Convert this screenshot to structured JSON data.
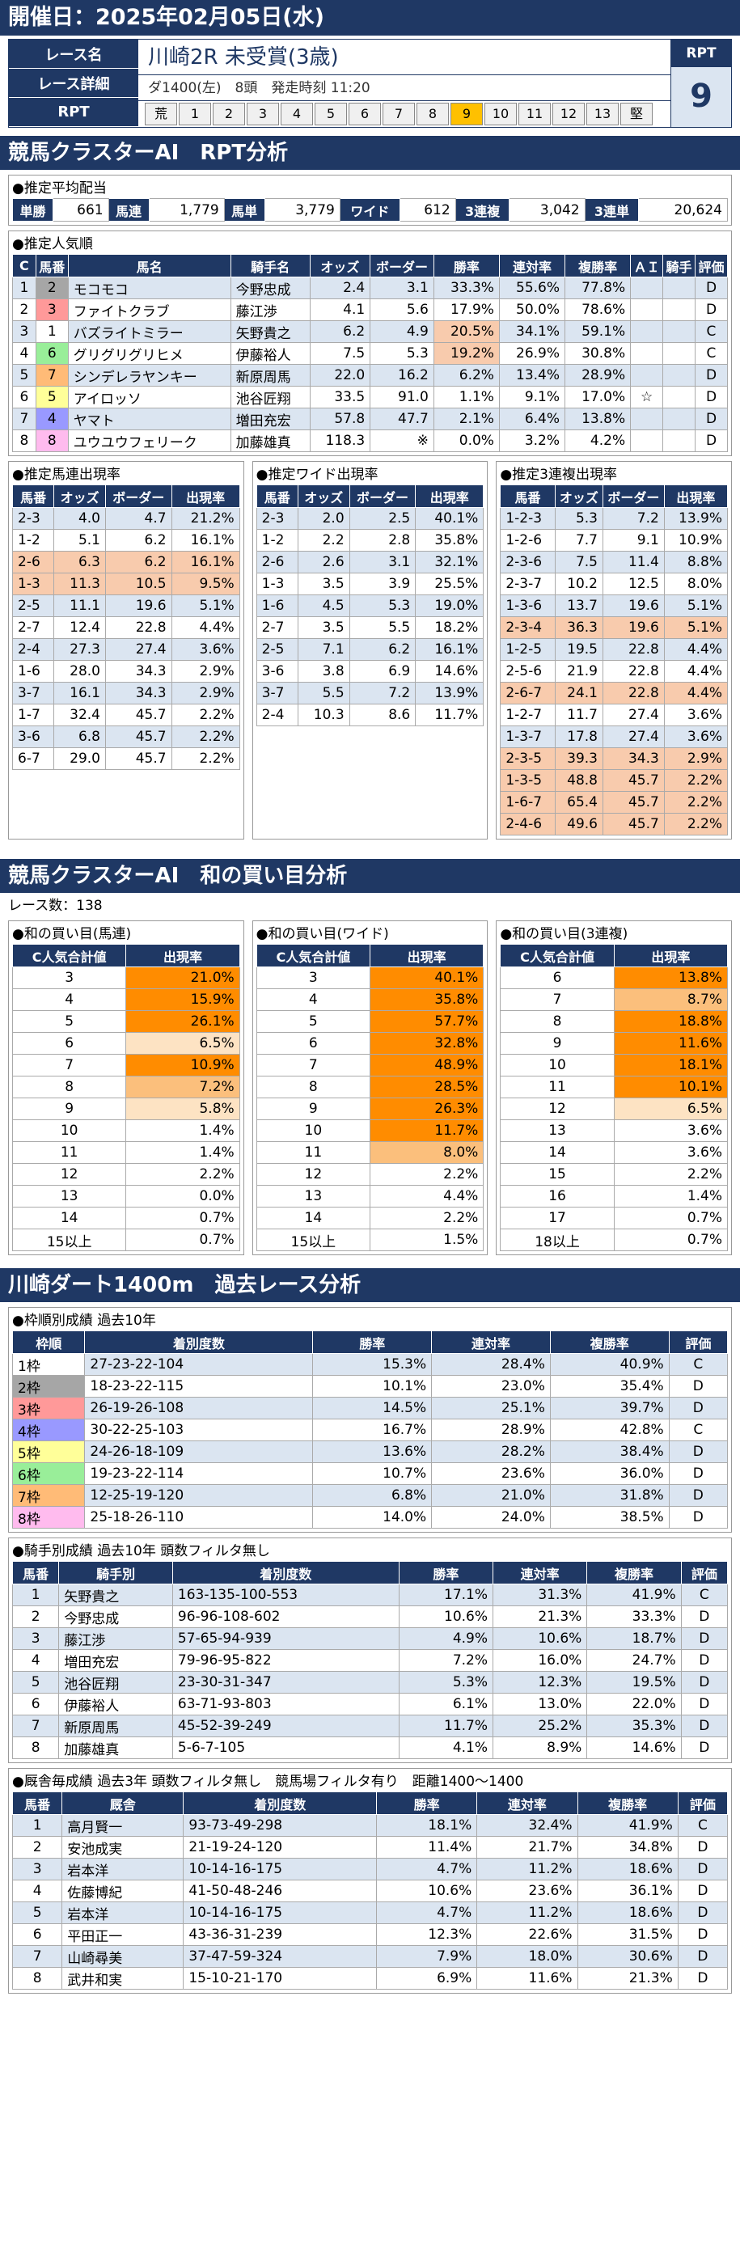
{
  "date_title": "開催日：2025年02月05日(水)",
  "race": {
    "name_label": "レース名",
    "name": "川崎2R 未受賞(3歳)",
    "detail_label": "レース詳細",
    "detail": "ダ1400(左)　8頭　発走時刻 11:20",
    "rpt_label": "RPT",
    "rpt_cells": [
      "荒",
      "1",
      "2",
      "3",
      "4",
      "5",
      "6",
      "7",
      "8",
      "9",
      "10",
      "11",
      "12",
      "13",
      "堅"
    ],
    "rpt_highlight": "9",
    "rpt_title": "RPT",
    "rpt_value": "9"
  },
  "s1_title": "競馬クラスターAI　RPT分析",
  "payout": {
    "caption": "●推定平均配当",
    "items": [
      [
        "単勝",
        "661"
      ],
      [
        "馬連",
        "1,779"
      ],
      [
        "馬単",
        "3,779"
      ],
      [
        "ワイド",
        "612"
      ],
      [
        "3連複",
        "3,042"
      ],
      [
        "3連単",
        "20,624"
      ]
    ]
  },
  "popular": {
    "caption": "●推定人気順",
    "headers": [
      "C",
      "馬番",
      "馬名",
      "騎手名",
      "オッズ",
      "ボーダー",
      "勝率",
      "連対率",
      "複勝率",
      "ＡＩ",
      "騎手",
      "評価"
    ],
    "rows": [
      [
        "1",
        "2",
        "モコモコ",
        "今野忠成",
        "2.4",
        "3.1",
        "33.3%",
        "55.6%",
        "77.8%",
        "",
        "",
        "D"
      ],
      [
        "2",
        "3",
        "ファイトクラブ",
        "藤江渉",
        "4.1",
        "5.6",
        "17.9%",
        "50.0%",
        "78.6%",
        "",
        "",
        "D"
      ],
      [
        "3",
        "1",
        "バズライトミラー",
        "矢野貴之",
        "6.2",
        "4.9",
        "20.5%",
        "34.1%",
        "59.1%",
        "",
        "",
        "C"
      ],
      [
        "4",
        "6",
        "グリグリグリヒメ",
        "伊藤裕人",
        "7.5",
        "5.3",
        "19.2%",
        "26.9%",
        "30.8%",
        "",
        "",
        "C"
      ],
      [
        "5",
        "7",
        "シンデレラヤンキー",
        "新原周馬",
        "22.0",
        "16.2",
        "6.2%",
        "13.4%",
        "28.9%",
        "",
        "",
        "D"
      ],
      [
        "6",
        "5",
        "アイロッソ",
        "池谷匠翔",
        "33.5",
        "91.0",
        "1.1%",
        "9.1%",
        "17.0%",
        "☆",
        "",
        "D"
      ],
      [
        "7",
        "4",
        "ヤマト",
        "増田充宏",
        "57.8",
        "47.7",
        "2.1%",
        "6.4%",
        "13.8%",
        "",
        "",
        "D"
      ],
      [
        "8",
        "8",
        "ユウユウフェリーク",
        "加藤雄真",
        "118.3",
        "※",
        "0.0%",
        "3.2%",
        "4.2%",
        "",
        "",
        "D"
      ]
    ]
  },
  "umaren": {
    "caption": "●推定馬連出現率",
    "headers": [
      "馬番",
      "オッズ",
      "ボーダー",
      "出現率"
    ],
    "rows": [
      [
        "2-3",
        "4.0",
        "4.7",
        "21.2%"
      ],
      [
        "1-2",
        "5.1",
        "6.2",
        "16.1%"
      ],
      [
        "2-6",
        "6.3",
        "6.2",
        "16.1%"
      ],
      [
        "1-3",
        "11.3",
        "10.5",
        "9.5%"
      ],
      [
        "2-5",
        "11.1",
        "19.6",
        "5.1%"
      ],
      [
        "2-7",
        "12.4",
        "22.8",
        "4.4%"
      ],
      [
        "2-4",
        "27.3",
        "27.4",
        "3.6%"
      ],
      [
        "1-6",
        "28.0",
        "34.3",
        "2.9%"
      ],
      [
        "3-7",
        "16.1",
        "34.3",
        "2.9%"
      ],
      [
        "1-7",
        "32.4",
        "45.7",
        "2.2%"
      ],
      [
        "3-6",
        "6.8",
        "45.7",
        "2.2%"
      ],
      [
        "6-7",
        "29.0",
        "45.7",
        "2.2%"
      ]
    ]
  },
  "wide": {
    "caption": "●推定ワイド出現率",
    "headers": [
      "馬番",
      "オッズ",
      "ボーダー",
      "出現率"
    ],
    "rows": [
      [
        "2-3",
        "2.0",
        "2.5",
        "40.1%"
      ],
      [
        "1-2",
        "2.2",
        "2.8",
        "35.8%"
      ],
      [
        "2-6",
        "2.6",
        "3.1",
        "32.1%"
      ],
      [
        "1-3",
        "3.5",
        "3.9",
        "25.5%"
      ],
      [
        "1-6",
        "4.5",
        "5.3",
        "19.0%"
      ],
      [
        "2-7",
        "3.5",
        "5.5",
        "18.2%"
      ],
      [
        "2-5",
        "7.1",
        "6.2",
        "16.1%"
      ],
      [
        "3-6",
        "3.8",
        "6.9",
        "14.6%"
      ],
      [
        "3-7",
        "5.5",
        "7.2",
        "13.9%"
      ],
      [
        "2-4",
        "10.3",
        "8.6",
        "11.7%"
      ]
    ]
  },
  "sanren": {
    "caption": "●推定3連複出現率",
    "headers": [
      "馬番",
      "オッズ",
      "ボーダー",
      "出現率"
    ],
    "rows": [
      [
        "1-2-3",
        "5.3",
        "7.2",
        "13.9%"
      ],
      [
        "1-2-6",
        "7.7",
        "9.1",
        "10.9%"
      ],
      [
        "2-3-6",
        "7.5",
        "11.4",
        "8.8%"
      ],
      [
        "2-3-7",
        "10.2",
        "12.5",
        "8.0%"
      ],
      [
        "1-3-6",
        "13.7",
        "19.6",
        "5.1%"
      ],
      [
        "2-3-4",
        "36.3",
        "19.6",
        "5.1%"
      ],
      [
        "1-2-5",
        "19.5",
        "22.8",
        "4.4%"
      ],
      [
        "2-5-6",
        "21.9",
        "22.8",
        "4.4%"
      ],
      [
        "2-6-7",
        "24.1",
        "22.8",
        "4.4%"
      ],
      [
        "1-2-7",
        "11.7",
        "27.4",
        "3.6%"
      ],
      [
        "1-3-7",
        "17.8",
        "27.4",
        "3.6%"
      ],
      [
        "2-3-5",
        "39.3",
        "34.3",
        "2.9%"
      ],
      [
        "1-3-5",
        "48.8",
        "45.7",
        "2.2%"
      ],
      [
        "1-6-7",
        "65.4",
        "45.7",
        "2.2%"
      ],
      [
        "2-4-6",
        "49.6",
        "45.7",
        "2.2%"
      ]
    ]
  },
  "s2_title": "競馬クラスターAI　和の買い目分析",
  "race_count": "レース数：138",
  "sum_umaren": {
    "caption": "●和の買い目(馬連)",
    "h1": "C人気合計値",
    "h2": "出現率",
    "rows": [
      [
        "3",
        "21.0%"
      ],
      [
        "4",
        "15.9%"
      ],
      [
        "5",
        "26.1%"
      ],
      [
        "6",
        "6.5%"
      ],
      [
        "7",
        "10.9%"
      ],
      [
        "8",
        "7.2%"
      ],
      [
        "9",
        "5.8%"
      ],
      [
        "10",
        "1.4%"
      ],
      [
        "11",
        "1.4%"
      ],
      [
        "12",
        "2.2%"
      ],
      [
        "13",
        "0.0%"
      ],
      [
        "14",
        "0.7%"
      ],
      [
        "15以上",
        "0.7%"
      ]
    ]
  },
  "sum_wide": {
    "caption": "●和の買い目(ワイド)",
    "h1": "C人気合計値",
    "h2": "出現率",
    "rows": [
      [
        "3",
        "40.1%"
      ],
      [
        "4",
        "35.8%"
      ],
      [
        "5",
        "57.7%"
      ],
      [
        "6",
        "32.8%"
      ],
      [
        "7",
        "48.9%"
      ],
      [
        "8",
        "28.5%"
      ],
      [
        "9",
        "26.3%"
      ],
      [
        "10",
        "11.7%"
      ],
      [
        "11",
        "8.0%"
      ],
      [
        "12",
        "2.2%"
      ],
      [
        "13",
        "4.4%"
      ],
      [
        "14",
        "2.2%"
      ],
      [
        "15以上",
        "1.5%"
      ]
    ]
  },
  "sum_sanren": {
    "caption": "●和の買い目(3連複)",
    "h1": "C人気合計値",
    "h2": "出現率",
    "rows": [
      [
        "6",
        "13.8%"
      ],
      [
        "7",
        "8.7%"
      ],
      [
        "8",
        "18.8%"
      ],
      [
        "9",
        "11.6%"
      ],
      [
        "10",
        "18.1%"
      ],
      [
        "11",
        "10.1%"
      ],
      [
        "12",
        "6.5%"
      ],
      [
        "13",
        "3.6%"
      ],
      [
        "14",
        "3.6%"
      ],
      [
        "15",
        "2.2%"
      ],
      [
        "16",
        "1.4%"
      ],
      [
        "17",
        "0.7%"
      ],
      [
        "18以上",
        "0.7%"
      ]
    ]
  },
  "s3_title": "川崎ダート1400m　過去レース分析",
  "frame": {
    "caption": "●枠順別成績 過去10年",
    "headers": [
      "枠順",
      "着別度数",
      "勝率",
      "連対率",
      "複勝率",
      "評価"
    ],
    "rows": [
      [
        "1枠",
        "27-23-22-104",
        "15.3%",
        "28.4%",
        "40.9%",
        "C"
      ],
      [
        "2枠",
        "18-23-22-115",
        "10.1%",
        "23.0%",
        "35.4%",
        "D"
      ],
      [
        "3枠",
        "26-19-26-108",
        "14.5%",
        "25.1%",
        "39.7%",
        "D"
      ],
      [
        "4枠",
        "30-22-25-103",
        "16.7%",
        "28.9%",
        "42.8%",
        "C"
      ],
      [
        "5枠",
        "24-26-18-109",
        "13.6%",
        "28.2%",
        "38.4%",
        "D"
      ],
      [
        "6枠",
        "19-23-22-114",
        "10.7%",
        "23.6%",
        "36.0%",
        "D"
      ],
      [
        "7枠",
        "12-25-19-120",
        "6.8%",
        "21.0%",
        "31.8%",
        "D"
      ],
      [
        "8枠",
        "25-18-26-110",
        "14.0%",
        "24.0%",
        "38.5%",
        "D"
      ]
    ]
  },
  "jockey": {
    "caption": "●騎手別成績 過去10年 頭数フィルタ無し",
    "headers": [
      "馬番",
      "騎手別",
      "着別度数",
      "勝率",
      "連対率",
      "複勝率",
      "評価"
    ],
    "rows": [
      [
        "1",
        "矢野貴之",
        "163-135-100-553",
        "17.1%",
        "31.3%",
        "41.9%",
        "C"
      ],
      [
        "2",
        "今野忠成",
        "96-96-108-602",
        "10.6%",
        "21.3%",
        "33.3%",
        "D"
      ],
      [
        "3",
        "藤江渉",
        "57-65-94-939",
        "4.9%",
        "10.6%",
        "18.7%",
        "D"
      ],
      [
        "4",
        "増田充宏",
        "79-96-95-822",
        "7.2%",
        "16.0%",
        "24.7%",
        "D"
      ],
      [
        "5",
        "池谷匠翔",
        "23-30-31-347",
        "5.3%",
        "12.3%",
        "19.5%",
        "D"
      ],
      [
        "6",
        "伊藤裕人",
        "63-71-93-803",
        "6.1%",
        "13.0%",
        "22.0%",
        "D"
      ],
      [
        "7",
        "新原周馬",
        "45-52-39-249",
        "11.7%",
        "25.2%",
        "35.3%",
        "D"
      ],
      [
        "8",
        "加藤雄真",
        "5-6-7-105",
        "4.1%",
        "8.9%",
        "14.6%",
        "D"
      ]
    ]
  },
  "stable": {
    "caption": "●厩舎毎成績 過去3年 頭数フィルタ無し　競馬場フィルタ有り　距離1400～1400",
    "headers": [
      "馬番",
      "厩舎",
      "着別度数",
      "勝率",
      "連対率",
      "複勝率",
      "評価"
    ],
    "rows": [
      [
        "1",
        "高月賢一",
        "93-73-49-298",
        "18.1%",
        "32.4%",
        "41.9%",
        "C"
      ],
      [
        "2",
        "安池成実",
        "21-19-24-120",
        "11.4%",
        "21.7%",
        "34.8%",
        "D"
      ],
      [
        "3",
        "岩本洋",
        "10-14-16-175",
        "4.7%",
        "11.2%",
        "18.6%",
        "D"
      ],
      [
        "4",
        "佐藤博紀",
        "41-50-48-246",
        "10.6%",
        "23.6%",
        "36.1%",
        "D"
      ],
      [
        "5",
        "岩本洋",
        "10-14-16-175",
        "4.7%",
        "11.2%",
        "18.6%",
        "D"
      ],
      [
        "6",
        "平田正一",
        "43-36-31-239",
        "12.3%",
        "22.6%",
        "31.5%",
        "D"
      ],
      [
        "7",
        "山崎尋美",
        "37-47-59-324",
        "7.9%",
        "18.0%",
        "30.6%",
        "D"
      ],
      [
        "8",
        "武井和実",
        "15-10-21-170",
        "6.9%",
        "11.6%",
        "21.3%",
        "D"
      ]
    ]
  },
  "colors": {
    "waku": [
      "#ffffff",
      "#a6a6a6",
      "#ff9999",
      "#9999ff",
      "#ffff99",
      "#99ee99",
      "#ffbb77",
      "#ffbbee"
    ]
  }
}
